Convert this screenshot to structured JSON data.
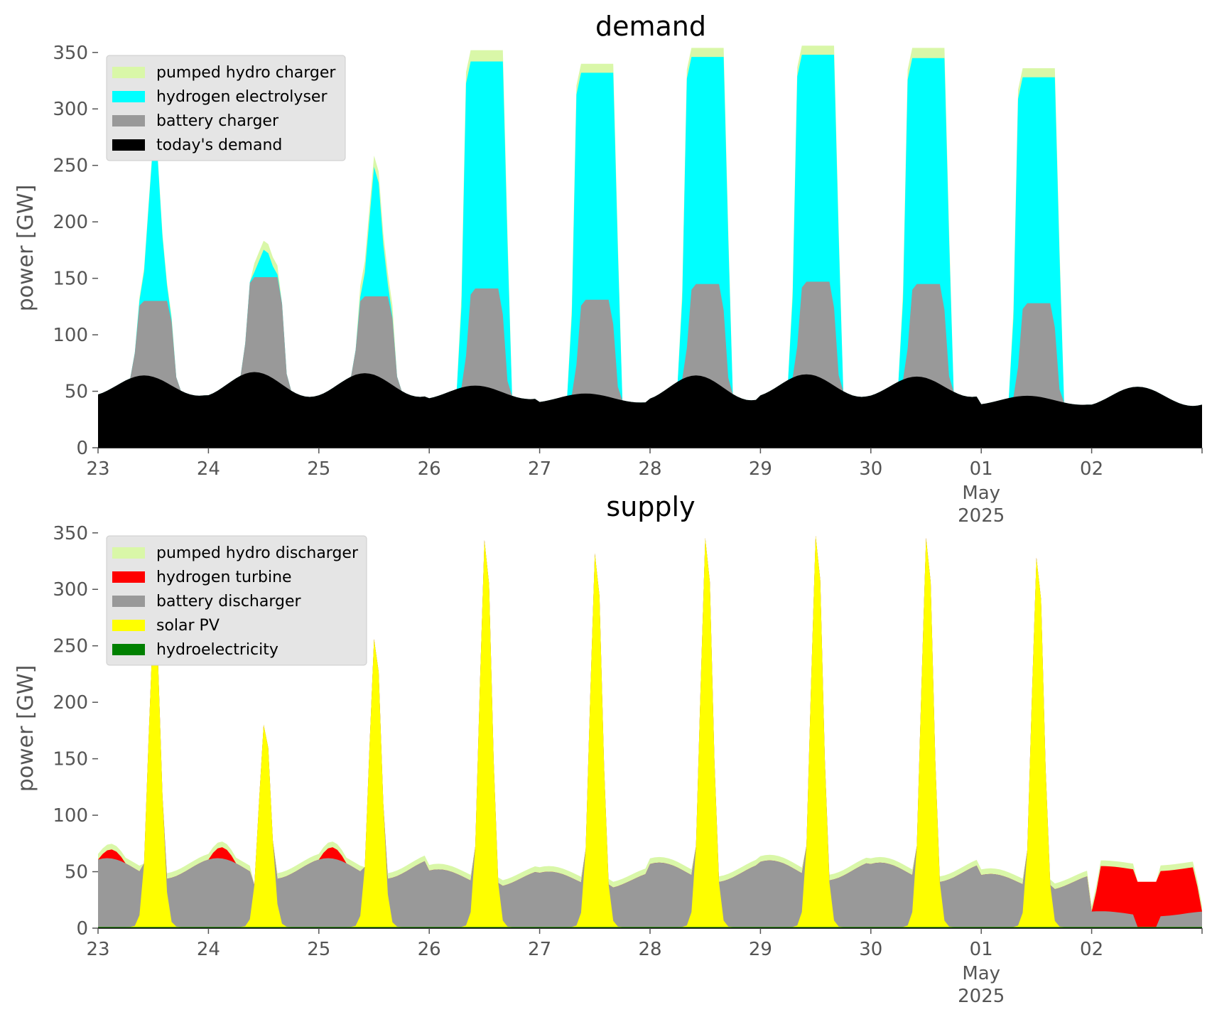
{
  "colors": {
    "pumped_hydro": "#d9f7a8",
    "hydrogen_electrolyser": "#00ffff",
    "battery": "#999999",
    "demand": "#000000",
    "hydrogen_turbine": "#ff0000",
    "solar": "#ffff00",
    "hydro": "#008000"
  },
  "chart_data": [
    {
      "type": "area",
      "title": "demand",
      "ylabel": "power [GW]",
      "xlabel": "",
      "ylim": [
        0,
        370
      ],
      "xlim": [
        "2025-04-23T00:00",
        "2025-05-03T00:00"
      ],
      "x_tick_labels": [
        "23",
        "24",
        "25",
        "26",
        "27",
        "28",
        "29",
        "30",
        "01",
        "02"
      ],
      "x_tick_month_label": "May",
      "x_tick_year_label": "2025",
      "y_ticks": [
        0,
        50,
        100,
        150,
        200,
        250,
        300,
        350
      ],
      "grid": false,
      "legend_position": "top-left",
      "stack_order": [
        "today's demand",
        "battery charger",
        "hydrogen electrolyser",
        "pumped hydro charger"
      ],
      "legend_order": [
        "pumped hydro charger",
        "hydrogen electrolyser",
        "battery charger",
        "today's demand"
      ],
      "day_peaks": {
        "day_start": [
          "2025-04-23",
          "2025-04-24",
          "2025-04-25",
          "2025-04-26",
          "2025-04-27",
          "2025-04-28",
          "2025-04-29",
          "2025-04-30",
          "2025-05-01",
          "2025-05-02"
        ],
        "today_demand_daily_max": [
          64,
          67,
          66,
          55,
          48,
          64,
          65,
          63,
          46,
          54
        ],
        "today_demand_daily_min": [
          46,
          45,
          45,
          43,
          40,
          42,
          45,
          45,
          38,
          37
        ],
        "battery_charger_daily_max": [
          130,
          151,
          134,
          141,
          131,
          145,
          147,
          145,
          128,
          0
        ],
        "hydrogen_electrolyser_daily_max": [
          275,
          176,
          252,
          342,
          332,
          346,
          348,
          345,
          328,
          0
        ],
        "pumped_hydro_charger_daily_max": [
          278,
          184,
          262,
          352,
          340,
          354,
          356,
          354,
          336,
          0
        ]
      },
      "series": [
        {
          "name": "pumped hydro charger",
          "color": "#d9f7a8"
        },
        {
          "name": "hydrogen electrolyser",
          "color": "#00ffff"
        },
        {
          "name": "battery charger",
          "color": "#999999"
        },
        {
          "name": "today's demand",
          "color": "#000000"
        }
      ]
    },
    {
      "type": "area",
      "title": "supply",
      "ylabel": "power [GW]",
      "xlabel": "",
      "ylim": [
        0,
        370
      ],
      "xlim": [
        "2025-04-23T00:00",
        "2025-05-03T00:00"
      ],
      "x_tick_labels": [
        "23",
        "24",
        "25",
        "26",
        "27",
        "28",
        "29",
        "30",
        "01",
        "02"
      ],
      "x_tick_month_label": "May",
      "x_tick_year_label": "2025",
      "y_ticks": [
        0,
        50,
        100,
        150,
        200,
        250,
        300,
        350
      ],
      "grid": false,
      "legend_position": "top-left",
      "stack_order": [
        "hydroelectricity",
        "solar PV",
        "battery discharger",
        "hydrogen turbine",
        "pumped hydro discharger"
      ],
      "legend_order": [
        "pumped hydro discharger",
        "hydrogen turbine",
        "battery discharger",
        "solar PV",
        "hydroelectricity"
      ],
      "day_peaks": {
        "day_start": [
          "2025-04-23",
          "2025-04-24",
          "2025-04-25",
          "2025-04-26",
          "2025-04-27",
          "2025-04-28",
          "2025-04-29",
          "2025-04-30",
          "2025-05-01",
          "2025-05-02"
        ],
        "solar_pv_daily_max": [
          278,
          184,
          262,
          352,
          340,
          354,
          356,
          354,
          336,
          0
        ],
        "battery_discharger_night_level": [
          62,
          62,
          62,
          52,
          50,
          58,
          60,
          58,
          48,
          15
        ],
        "hydrogen_turbine_max": [
          8,
          10,
          10,
          0,
          0,
          0,
          0,
          0,
          0,
          40
        ],
        "hydroelectricity_level": [
          1,
          1,
          1,
          1,
          1,
          1,
          1,
          1,
          1,
          1
        ]
      },
      "series": [
        {
          "name": "pumped hydro discharger",
          "color": "#d9f7a8"
        },
        {
          "name": "hydrogen turbine",
          "color": "#ff0000"
        },
        {
          "name": "battery discharger",
          "color": "#999999"
        },
        {
          "name": "solar PV",
          "color": "#ffff00"
        },
        {
          "name": "hydroelectricity",
          "color": "#008000"
        }
      ]
    }
  ]
}
